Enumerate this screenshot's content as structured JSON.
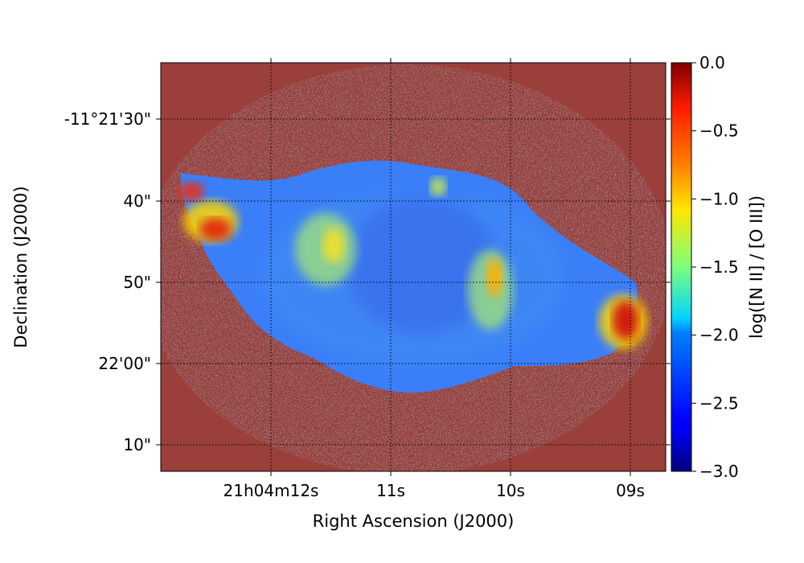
{
  "chart_data": {
    "type": "heatmap",
    "title": "",
    "xlabel": "Right Ascension (J2000)",
    "ylabel": "Declination (J2000)",
    "x_ticks": [
      "21h04m12s",
      "11s",
      "10s",
      "09s"
    ],
    "y_ticks": [
      "-11°21'30\"",
      "40\"",
      "50\"",
      "22'00\"",
      "10\""
    ],
    "grid": true,
    "grid_style": "dotted",
    "colormap": "jet",
    "background_color": "#9a3f3a",
    "colorbar": {
      "label": "log([N II] / [O III])",
      "ticks": [
        "0.0",
        "−0.5",
        "−1.0",
        "−1.5",
        "−2.0",
        "−2.5",
        "−3.0"
      ],
      "tick_values": [
        0.0,
        -0.5,
        -1.0,
        -1.5,
        -2.0,
        -2.5,
        -3.0
      ],
      "range": [
        -3.0,
        0.0
      ],
      "position": "right"
    },
    "features": [
      {
        "region": "nebula body",
        "value": -2.3
      },
      {
        "region": "east bright knot",
        "value": -0.2
      },
      {
        "region": "west bright knot",
        "value": -0.1
      },
      {
        "region": "central east condensation",
        "value": -1.2
      },
      {
        "region": "central west filament",
        "value": -0.8
      }
    ]
  }
}
